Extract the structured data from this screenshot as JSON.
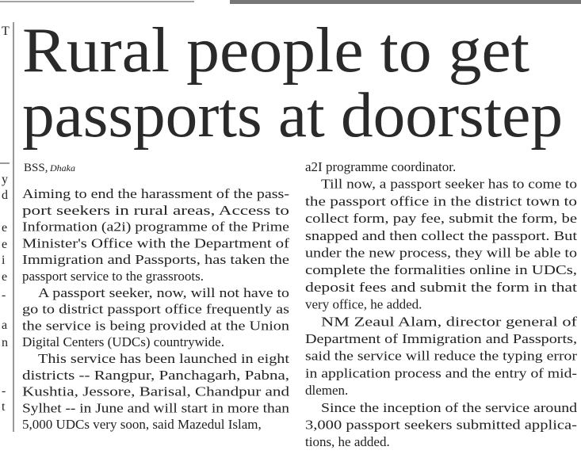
{
  "article": {
    "headline": [
      "Rural people to get",
      "passports at doorstep"
    ],
    "byline": {
      "agency": "BSS,",
      "place": "Dhaka"
    },
    "margin_fragments": [
      "T",
      "y",
      "d",
      "e",
      "e",
      "i",
      "e",
      "-",
      "a",
      "n",
      "-",
      "t"
    ],
    "columns": [
      {
        "paragraphs": [
          {
            "lines": [
              "Aiming to end the harassment of the pass-",
              "port seekers in rural areas, Access to",
              "Information (a2i) programme of the Prime",
              "Minister's Office with the Department of",
              "Immigration and Passports, has taken the",
              "passport service to the grassroots."
            ]
          },
          {
            "lines": [
              "A passport seeker, now, will not have to",
              "go to district passport office frequently as",
              "the service is being provided at the Union",
              "Digital Centers (UDCs) countrywide."
            ]
          },
          {
            "lines": [
              "This service has been launched in eight",
              "districts -- Rangpur, Panchagarh, Pabna,",
              "Kushtia, Jessore, Barisal, Chandpur and",
              "Sylhet -- in June and will start in more than",
              "5,000 UDCs very soon, said Mazedul Islam,"
            ]
          }
        ]
      },
      {
        "paragraphs": [
          {
            "lines": [
              "a2I programme coordinator."
            ]
          },
          {
            "lines": [
              "Till now, a passport seeker has to come to",
              "the passport office in the district town to",
              "collect form, pay fee, submit the form, be",
              "snapped and then collect the passport. But",
              "under the new process, they will be able to",
              "complete the formalities online in UDCs,",
              "deposit fees and submit the form in that",
              "very office, he added."
            ]
          },
          {
            "lines": [
              "NM Zeaul Alam, director general of",
              "Department of Immigration and Passports,",
              "said the service will reduce the typing error",
              "in application process and the entry of mid-",
              "dlemen."
            ]
          },
          {
            "lines": [
              "Since the inception of the service around",
              "3,000 passport seekers submitted applica-",
              "tions, he added."
            ]
          }
        ]
      }
    ]
  }
}
